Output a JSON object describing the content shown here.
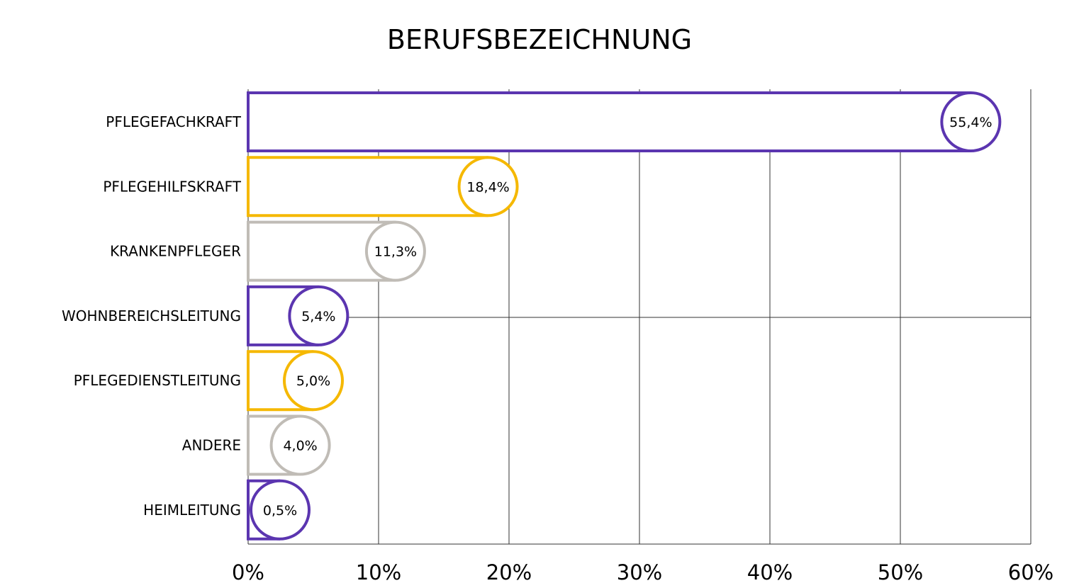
{
  "chart_data": {
    "type": "bar",
    "orientation": "horizontal",
    "title": "BERUFSBEZEICHNUNG",
    "xlabel": "",
    "ylabel": "",
    "xlim": [
      0,
      60
    ],
    "x_ticks": [
      0,
      10,
      20,
      30,
      40,
      50,
      60
    ],
    "x_tick_labels": [
      "0%",
      "10%",
      "20%",
      "30%",
      "40%",
      "50%",
      "60%"
    ],
    "grid": "vertical",
    "categories": [
      "PFLEGEFACHKRAFT",
      "PFLEGEHILFSKRAFT",
      "KRANKENPFLEGER",
      "WOHNBEREICHSLEITUNG",
      "PFLEGEDIENSTLEITUNG",
      "ANDERE",
      "HEIMLEITUNG"
    ],
    "values": [
      55.4,
      18.4,
      11.3,
      5.4,
      5.0,
      4.0,
      0.5
    ],
    "value_labels": [
      "55,4%",
      "18,4%",
      "11,3%",
      "5,4%",
      "5,0%",
      "4,0%",
      "0,5%"
    ],
    "colors": [
      "#5b35b0",
      "#f5b800",
      "#c0bcb6",
      "#5b35b0",
      "#f5b800",
      "#c0bcb6",
      "#5b35b0"
    ]
  }
}
